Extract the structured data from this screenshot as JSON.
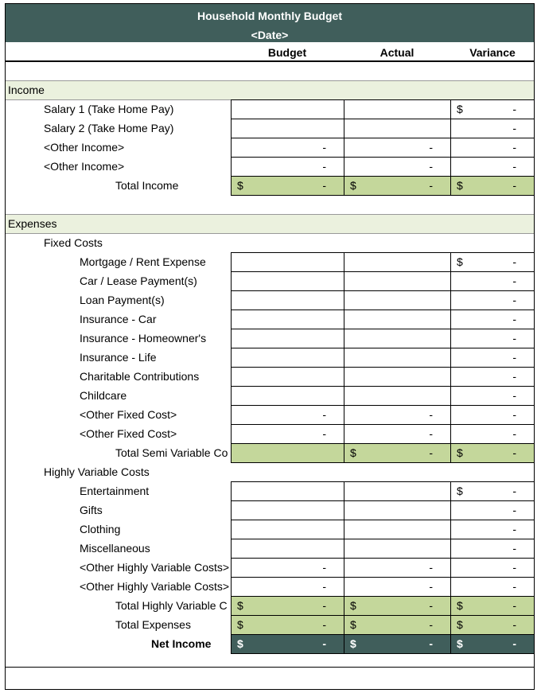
{
  "header": {
    "title": "Household Monthly Budget",
    "date": "<Date>"
  },
  "columns": [
    "Budget",
    "Actual",
    "Variance"
  ],
  "sections": [
    {
      "name": "Income",
      "items": [
        {
          "label": "Salary 1 (Take Home Pay)",
          "cells": [
            null,
            null,
            {
              "currency": "$",
              "value": "-"
            }
          ]
        },
        {
          "label": "Salary 2 (Take Home Pay)",
          "cells": [
            null,
            null,
            {
              "value": "-"
            }
          ]
        },
        {
          "label": "<Other Income>",
          "cells": [
            {
              "value": "-"
            },
            {
              "value": "-"
            },
            {
              "value": "-"
            }
          ]
        },
        {
          "label": "<Other Income>",
          "cells": [
            {
              "value": "-"
            },
            {
              "value": "-"
            },
            {
              "value": "-"
            }
          ]
        }
      ],
      "total": {
        "label": "Total Income",
        "cells": [
          {
            "currency": "$",
            "value": "-"
          },
          {
            "currency": "$",
            "value": "-"
          },
          {
            "currency": "$",
            "value": "-"
          }
        ]
      }
    },
    {
      "name": "Expenses",
      "groups": [
        {
          "name": "Fixed Costs",
          "items": [
            {
              "label": "Mortgage / Rent Expense",
              "cells": [
                null,
                null,
                {
                  "currency": "$",
                  "value": "-"
                }
              ]
            },
            {
              "label": "Car / Lease Payment(s)",
              "cells": [
                null,
                null,
                {
                  "value": "-"
                }
              ]
            },
            {
              "label": "Loan Payment(s)",
              "cells": [
                null,
                null,
                {
                  "value": "-"
                }
              ]
            },
            {
              "label": "Insurance - Car",
              "cells": [
                null,
                null,
                {
                  "value": "-"
                }
              ]
            },
            {
              "label": "Insurance - Homeowner's",
              "cells": [
                null,
                null,
                {
                  "value": "-"
                }
              ]
            },
            {
              "label": "Insurance - Life",
              "cells": [
                null,
                null,
                {
                  "value": "-"
                }
              ]
            },
            {
              "label": "Charitable Contributions",
              "cells": [
                null,
                null,
                {
                  "value": "-"
                }
              ]
            },
            {
              "label": "Childcare",
              "cells": [
                null,
                null,
                {
                  "value": "-"
                }
              ]
            },
            {
              "label": "<Other Fixed Cost>",
              "cells": [
                {
                  "value": "-"
                },
                {
                  "value": "-"
                },
                {
                  "value": "-"
                }
              ]
            },
            {
              "label": "<Other Fixed Cost>",
              "cells": [
                {
                  "value": "-"
                },
                {
                  "value": "-"
                },
                {
                  "value": "-"
                }
              ]
            }
          ],
          "total": {
            "label": "Total Semi Variable Co",
            "cells": [
              null,
              {
                "currency": "$",
                "value": "-"
              },
              {
                "currency": "$",
                "value": "-"
              }
            ]
          }
        },
        {
          "name": "Highly Variable Costs",
          "items": [
            {
              "label": "Entertainment",
              "cells": [
                null,
                null,
                {
                  "currency": "$",
                  "value": "-"
                }
              ]
            },
            {
              "label": "Gifts",
              "cells": [
                null,
                null,
                {
                  "value": "-"
                }
              ]
            },
            {
              "label": "Clothing",
              "cells": [
                null,
                null,
                {
                  "value": "-"
                }
              ]
            },
            {
              "label": "Miscellaneous",
              "cells": [
                null,
                null,
                {
                  "value": "-"
                }
              ]
            },
            {
              "label": "<Other Highly Variable Costs>",
              "cells": [
                {
                  "value": "-"
                },
                {
                  "value": "-"
                },
                {
                  "value": "-"
                }
              ]
            },
            {
              "label": "<Other Highly Variable Costs>",
              "cells": [
                {
                  "value": "-"
                },
                {
                  "value": "-"
                },
                {
                  "value": "-"
                }
              ]
            }
          ],
          "total": {
            "label": "Total Highly Variable C",
            "cells": [
              {
                "currency": "$",
                "value": "-"
              },
              {
                "currency": "$",
                "value": "-"
              },
              {
                "currency": "$",
                "value": "-"
              }
            ]
          }
        }
      ],
      "total": {
        "label": "Total Expenses",
        "cells": [
          {
            "currency": "$",
            "value": "-"
          },
          {
            "currency": "$",
            "value": "-"
          },
          {
            "currency": "$",
            "value": "-"
          }
        ]
      }
    }
  ],
  "net": {
    "label": "Net Income",
    "cells": [
      {
        "currency": "$",
        "value": "-"
      },
      {
        "currency": "$",
        "value": "-"
      },
      {
        "currency": "$",
        "value": "-"
      }
    ]
  }
}
